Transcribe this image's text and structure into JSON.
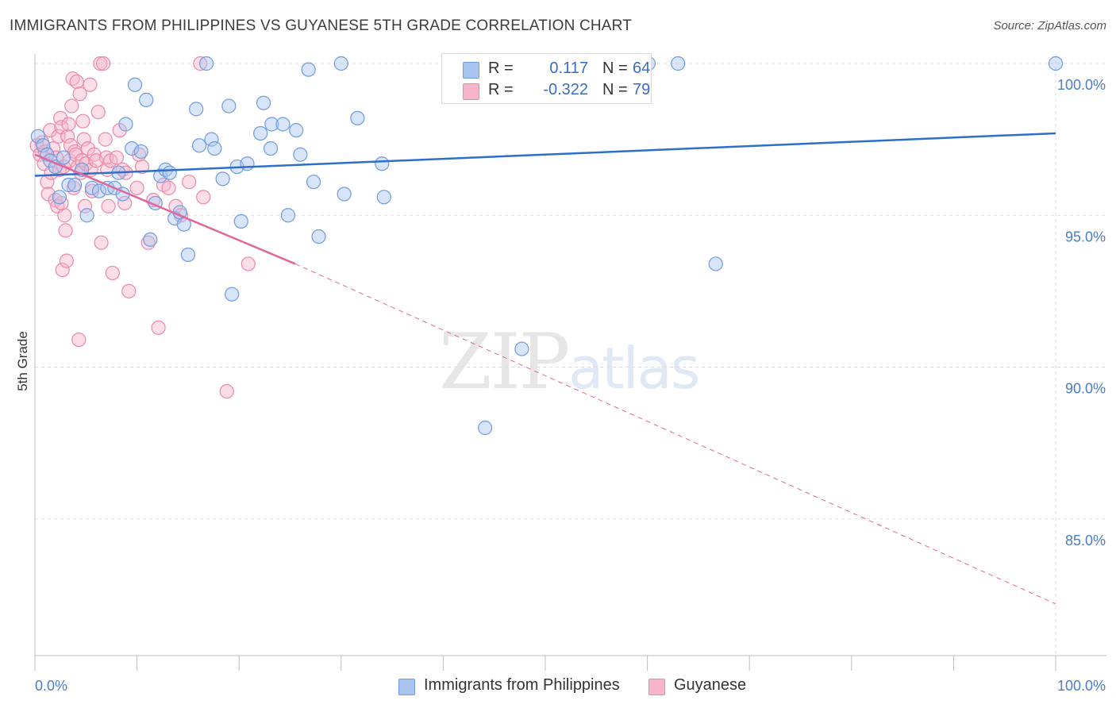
{
  "title": "IMMIGRANTS FROM PHILIPPINES VS GUYANESE 5TH GRADE CORRELATION CHART",
  "source": "Source: ZipAtlas.com",
  "watermark": {
    "zip": "ZIP",
    "atlas": "atlas"
  },
  "legend": {
    "rows": [
      {
        "r_label": "R =",
        "r_value": "0.117",
        "n_label": "N =",
        "n_value": "64"
      },
      {
        "r_label": "R =",
        "r_value": "-0.322",
        "n_label": "N =",
        "n_value": "79"
      }
    ]
  },
  "bottom_legend": {
    "series1": "Immigrants from Philippines",
    "series2": "Guyanese"
  },
  "colors": {
    "blue_fill": "#a9c4ee",
    "blue_stroke": "#6f9be0",
    "blue_line": "#2f6fca",
    "pink_fill": "#f6b5ca",
    "pink_stroke": "#ea89a8",
    "pink_line": "#e0679a",
    "grid": "#dddddd",
    "tick_text": "#4a7cc9"
  },
  "chart_data": {
    "type": "scatter",
    "title": "IMMIGRANTS FROM PHILIPPINES VS GUYANESE 5TH GRADE CORRELATION CHART",
    "xlabel": "",
    "ylabel": "5th Grade",
    "xlim": [
      0,
      100
    ],
    "ylim": [
      80.3,
      100.9
    ],
    "x_tick_labels": [
      "0.0%",
      "100.0%"
    ],
    "y_ticks": [
      85,
      90,
      95,
      100
    ],
    "y_tick_labels": [
      "85.0%",
      "90.0%",
      "95.0%",
      "100.0%"
    ],
    "grid": true,
    "legend_position": "top-center",
    "series": [
      {
        "name": "Immigrants from Philippines",
        "color": "#a9c4ee",
        "r": 0.117,
        "n": 64,
        "trend": {
          "x": [
            0,
            100
          ],
          "y": [
            96.3,
            97.7
          ],
          "extrapolated": false
        },
        "points": [
          [
            0.3,
            97.6
          ],
          [
            0.8,
            97.3
          ],
          [
            1.2,
            97.0
          ],
          [
            1.5,
            96.8
          ],
          [
            2.0,
            96.6
          ],
          [
            2.4,
            95.6
          ],
          [
            2.8,
            96.9
          ],
          [
            3.3,
            96.0
          ],
          [
            3.9,
            96.0
          ],
          [
            4.6,
            96.5
          ],
          [
            5.1,
            95.0
          ],
          [
            5.6,
            95.9
          ],
          [
            6.3,
            95.8
          ],
          [
            7.1,
            95.9
          ],
          [
            7.8,
            95.9
          ],
          [
            8.2,
            96.4
          ],
          [
            8.6,
            95.7
          ],
          [
            8.9,
            98.0
          ],
          [
            9.5,
            97.2
          ],
          [
            9.8,
            99.3
          ],
          [
            10.4,
            97.1
          ],
          [
            10.9,
            98.8
          ],
          [
            11.3,
            94.2
          ],
          [
            11.8,
            95.4
          ],
          [
            12.3,
            96.3
          ],
          [
            12.8,
            96.5
          ],
          [
            13.2,
            96.4
          ],
          [
            13.7,
            94.9
          ],
          [
            14.2,
            95.1
          ],
          [
            14.6,
            94.7
          ],
          [
            15.0,
            93.7
          ],
          [
            15.8,
            98.5
          ],
          [
            16.1,
            97.3
          ],
          [
            16.8,
            100.0
          ],
          [
            17.3,
            97.5
          ],
          [
            17.6,
            97.2
          ],
          [
            18.4,
            96.2
          ],
          [
            19.0,
            98.6
          ],
          [
            19.3,
            92.4
          ],
          [
            19.8,
            96.6
          ],
          [
            20.2,
            94.8
          ],
          [
            20.8,
            96.7
          ],
          [
            22.1,
            97.7
          ],
          [
            22.4,
            98.7
          ],
          [
            23.1,
            97.2
          ],
          [
            23.2,
            98.0
          ],
          [
            24.3,
            98.0
          ],
          [
            24.8,
            95.0
          ],
          [
            25.6,
            97.8
          ],
          [
            26.0,
            97.0
          ],
          [
            26.8,
            99.8
          ],
          [
            27.3,
            96.1
          ],
          [
            27.8,
            94.3
          ],
          [
            30.0,
            100.0
          ],
          [
            30.3,
            95.7
          ],
          [
            31.6,
            98.2
          ],
          [
            34.0,
            96.7
          ],
          [
            34.2,
            95.6
          ],
          [
            44.1,
            88.0
          ],
          [
            47.7,
            90.6
          ],
          [
            60.1,
            100.0
          ],
          [
            63.0,
            100.0
          ],
          [
            66.7,
            93.4
          ],
          [
            100.0,
            100.0
          ]
        ]
      },
      {
        "name": "Guyanese",
        "color": "#f6b5ca",
        "r": -0.322,
        "n": 79,
        "trend": {
          "x": [
            0,
            25.5,
            100
          ],
          "y": [
            97.0,
            93.4,
            82.2
          ],
          "extrapolated_from": 25.5
        },
        "points": [
          [
            0.2,
            97.3
          ],
          [
            0.5,
            97.0
          ],
          [
            0.7,
            97.4
          ],
          [
            0.9,
            96.7
          ],
          [
            1.0,
            97.1
          ],
          [
            1.2,
            96.1
          ],
          [
            1.3,
            95.7
          ],
          [
            1.5,
            97.8
          ],
          [
            1.6,
            96.4
          ],
          [
            1.8,
            97.2
          ],
          [
            2.0,
            95.5
          ],
          [
            2.1,
            96.9
          ],
          [
            2.2,
            95.3
          ],
          [
            2.3,
            97.6
          ],
          [
            2.4,
            96.5
          ],
          [
            2.5,
            98.2
          ],
          [
            2.6,
            97.9
          ],
          [
            2.7,
            93.2
          ],
          [
            2.8,
            96.6
          ],
          [
            2.9,
            95.0
          ],
          [
            3.0,
            94.5
          ],
          [
            3.1,
            93.5
          ],
          [
            3.2,
            97.6
          ],
          [
            3.3,
            98.0
          ],
          [
            3.4,
            96.8
          ],
          [
            3.5,
            97.3
          ],
          [
            3.6,
            98.6
          ],
          [
            3.7,
            99.5
          ],
          [
            3.8,
            95.9
          ],
          [
            3.9,
            97.1
          ],
          [
            4.0,
            97.0
          ],
          [
            4.1,
            99.4
          ],
          [
            4.2,
            96.6
          ],
          [
            4.3,
            90.9
          ],
          [
            4.4,
            99.0
          ],
          [
            4.5,
            96.4
          ],
          [
            4.6,
            96.8
          ],
          [
            4.7,
            98.1
          ],
          [
            4.8,
            97.5
          ],
          [
            4.9,
            95.3
          ],
          [
            5.0,
            96.7
          ],
          [
            5.2,
            97.2
          ],
          [
            5.4,
            99.3
          ],
          [
            5.5,
            96.5
          ],
          [
            5.6,
            95.8
          ],
          [
            5.8,
            97.0
          ],
          [
            6.0,
            96.8
          ],
          [
            6.2,
            98.4
          ],
          [
            6.4,
            100.0
          ],
          [
            6.5,
            94.1
          ],
          [
            6.7,
            100.0
          ],
          [
            6.9,
            97.5
          ],
          [
            7.0,
            96.9
          ],
          [
            7.1,
            96.5
          ],
          [
            7.2,
            95.3
          ],
          [
            7.4,
            96.8
          ],
          [
            7.6,
            93.1
          ],
          [
            8.0,
            96.9
          ],
          [
            8.3,
            97.8
          ],
          [
            8.6,
            96.5
          ],
          [
            8.9,
            96.4
          ],
          [
            9.2,
            92.5
          ],
          [
            10.0,
            95.9
          ],
          [
            10.2,
            97.0
          ],
          [
            10.5,
            96.6
          ],
          [
            11.1,
            94.1
          ],
          [
            11.6,
            95.5
          ],
          [
            12.1,
            91.3
          ],
          [
            12.6,
            96.0
          ],
          [
            13.1,
            95.9
          ],
          [
            13.8,
            95.3
          ],
          [
            14.3,
            95.0
          ],
          [
            15.1,
            96.1
          ],
          [
            16.2,
            100.0
          ],
          [
            16.5,
            95.6
          ],
          [
            18.8,
            89.2
          ],
          [
            20.9,
            93.4
          ],
          [
            8.8,
            95.4
          ],
          [
            2.6,
            95.4
          ]
        ]
      }
    ]
  }
}
